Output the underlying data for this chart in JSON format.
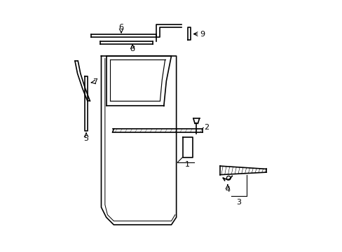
{
  "background_color": "#ffffff",
  "line_color": "#000000",
  "figsize": [
    4.89,
    3.6
  ],
  "dpi": 100,
  "door": {
    "outline_x": [
      0.22,
      0.22,
      0.24,
      0.26,
      0.5,
      0.52,
      0.52,
      0.22
    ],
    "outline_y": [
      0.78,
      0.18,
      0.13,
      0.1,
      0.1,
      0.13,
      0.78,
      0.78
    ]
  }
}
